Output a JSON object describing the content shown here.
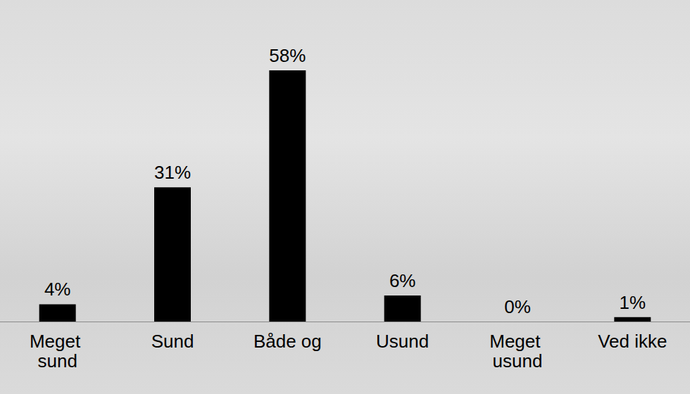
{
  "chart_data": {
    "type": "bar",
    "categories": [
      "Meget sund",
      "Sund",
      "Både og",
      "Usund",
      "Meget usund",
      "Ved ikke"
    ],
    "values": [
      4,
      31,
      58,
      6,
      0,
      1
    ],
    "value_labels": [
      "4%",
      "31%",
      "58%",
      "6%",
      "0%",
      "1%"
    ],
    "color": "#000000",
    "ylim": [
      0,
      58
    ],
    "grid": false,
    "data_labels": true,
    "tick_labels": "x"
  }
}
